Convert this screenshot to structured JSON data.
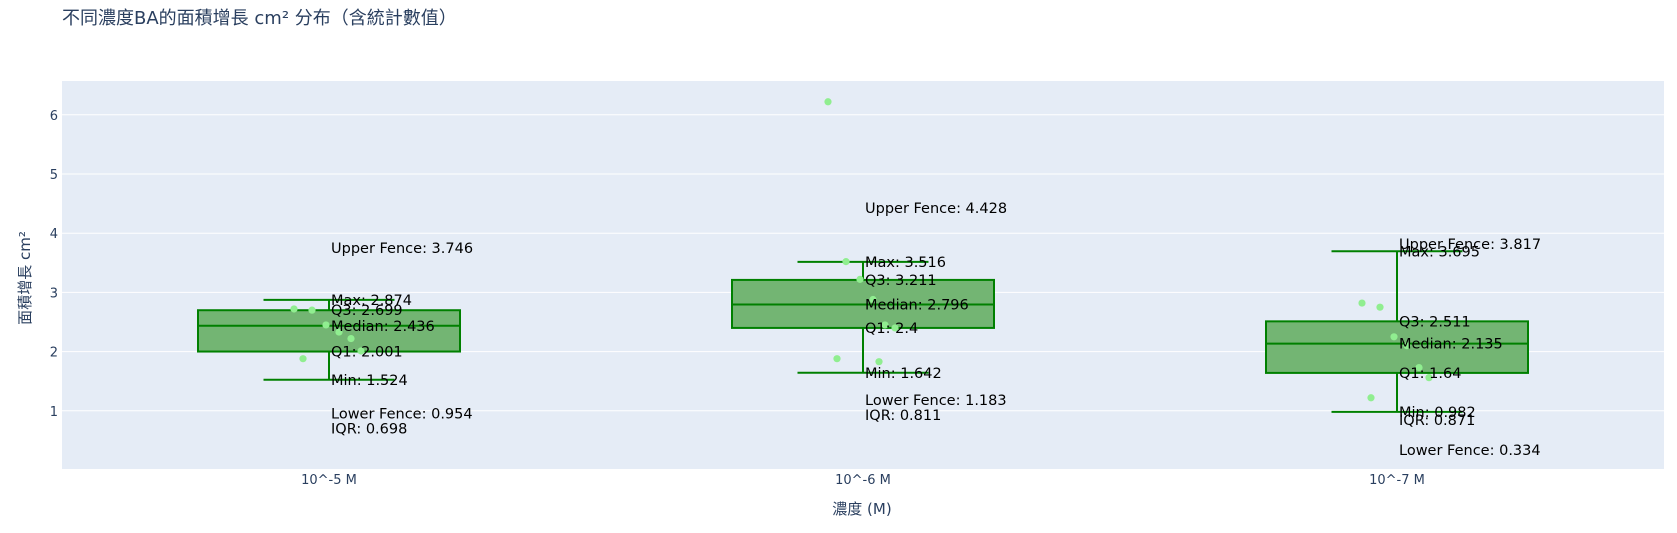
{
  "chart_data": {
    "type": "box",
    "title": "不同濃度BA的面積增長 cm² 分布（含統計數值）",
    "xlabel": "濃度 (M)",
    "ylabel": "面積增長 cm²",
    "categories": [
      "10^-5 M",
      "10^-6 M",
      "10^-7 M"
    ],
    "ylim": [
      0,
      6.5
    ],
    "yticks": [
      1,
      2,
      3,
      4,
      5,
      6
    ],
    "grid": true,
    "colors": {
      "box_fill": "#73b573",
      "box_line": "#008000",
      "points": "#90ee90",
      "plot_bg": "#e5ecf6"
    },
    "boxes": [
      {
        "category": "10^-5 M",
        "min": 1.524,
        "q1": 2.001,
        "median": 2.436,
        "q3": 2.699,
        "max": 2.874,
        "upper_fence": 3.746,
        "lower_fence": 0.954,
        "iqr": 0.698,
        "points": [
          2.72,
          2.7,
          2.45,
          2.33,
          2.22,
          2.01,
          1.88
        ]
      },
      {
        "category": "10^-6 M",
        "min": 1.642,
        "q1": 2.4,
        "median": 2.796,
        "q3": 3.211,
        "max": 3.516,
        "upper_fence": 4.428,
        "lower_fence": 1.183,
        "iqr": 0.811,
        "points": [
          6.22,
          3.52,
          3.22,
          2.88,
          2.45,
          2.4,
          1.88,
          1.83
        ]
      },
      {
        "category": "10^-7 M",
        "min": 0.982,
        "q1": 1.64,
        "median": 2.135,
        "q3": 2.511,
        "max": 3.695,
        "upper_fence": 3.817,
        "lower_fence": 0.334,
        "iqr": 0.871,
        "points": [
          2.82,
          2.75,
          2.25,
          2.1,
          1.73,
          1.56,
          1.22
        ]
      }
    ],
    "annotations": [
      [
        "Upper Fence: 3.746",
        "Max: 2.874",
        "Q3: 2.699",
        "Median: 2.436",
        "Q1: 2.001",
        "Min: 1.524",
        "Lower Fence: 0.954",
        "IQR: 0.698"
      ],
      [
        "Upper Fence: 4.428",
        "Max: 3.516",
        "Q3: 3.211",
        "Median: 2.796",
        "Q1: 2.4",
        "Min: 1.642",
        "Lower Fence: 1.183",
        "IQR: 0.811"
      ],
      [
        "Upper Fence: 3.817",
        "Max: 3.695",
        "Q3: 2.511",
        "Median: 2.135",
        "Q1: 1.64",
        "Min: 0.982",
        "IQR: 0.871",
        "Lower Fence: 0.334"
      ]
    ]
  }
}
